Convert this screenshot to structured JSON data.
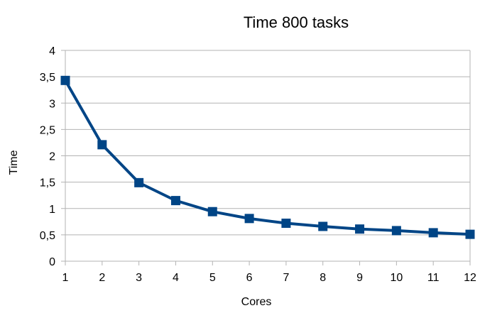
{
  "chart_data": {
    "type": "line",
    "title": "Time 800 tasks",
    "xlabel": "Cores",
    "ylabel": "Time",
    "x": [
      1,
      2,
      3,
      4,
      5,
      6,
      7,
      8,
      9,
      10,
      11,
      12
    ],
    "xlim": [
      1,
      12
    ],
    "ylim": [
      0,
      4
    ],
    "x_ticks": [
      "1",
      "2",
      "3",
      "4",
      "5",
      "6",
      "7",
      "8",
      "9",
      "10",
      "11",
      "12"
    ],
    "y_ticks": [
      "0",
      "0,5",
      "1",
      "1,5",
      "2",
      "2,5",
      "3",
      "3,5",
      "4"
    ],
    "y_tick_values": [
      0,
      0.5,
      1,
      1.5,
      2,
      2.5,
      3,
      3.5,
      4
    ],
    "grid": true,
    "legend": "none",
    "series": [
      {
        "values": [
          3.43,
          2.21,
          1.49,
          1.15,
          0.94,
          0.81,
          0.72,
          0.66,
          0.61,
          0.58,
          0.54,
          0.51
        ],
        "color": "#004586",
        "marker": "square"
      }
    ],
    "grid_color": "#b3b3b3"
  }
}
